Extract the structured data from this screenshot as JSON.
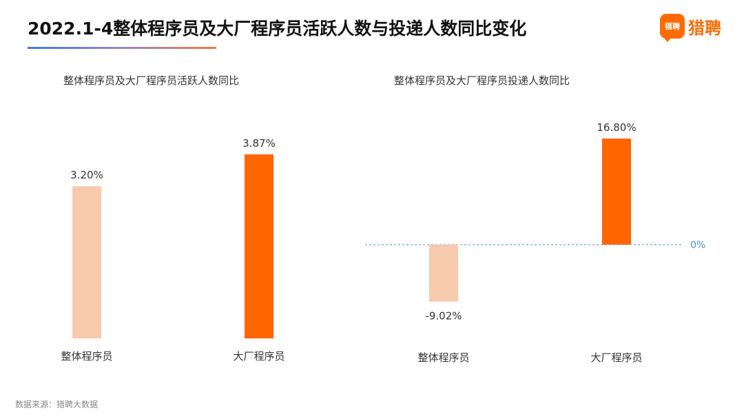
{
  "header": {
    "title": "2022.1-4整体程序员及大厂程序员活跃人数与投递人数同比变化",
    "logo_mark": "猎聘",
    "logo_text": "猎聘"
  },
  "colors": {
    "light_bar": "#f7caad",
    "dark_bar": "#ff6600",
    "zero_line": "#4a90c8"
  },
  "chart_data": [
    {
      "type": "bar",
      "title": "整体程序员及大厂程序员活跃人数同比",
      "categories": [
        "整体程序员",
        "大厂程序员"
      ],
      "values": [
        3.2,
        3.87
      ],
      "value_labels": [
        "3.20%",
        "3.87%"
      ],
      "unit": "%",
      "ylim": [
        0,
        3.87
      ]
    },
    {
      "type": "bar",
      "title": "整体程序员及大厂程序员投递人数同比",
      "categories": [
        "整体程序员",
        "大厂程序员"
      ],
      "values": [
        -9.02,
        16.8
      ],
      "value_labels": [
        "-9.02%",
        "16.80%"
      ],
      "unit": "%",
      "zero_label": "0%",
      "ylim": [
        -9.02,
        16.8
      ]
    }
  ],
  "footer": {
    "source": "数据来源：猎聘大数据"
  }
}
